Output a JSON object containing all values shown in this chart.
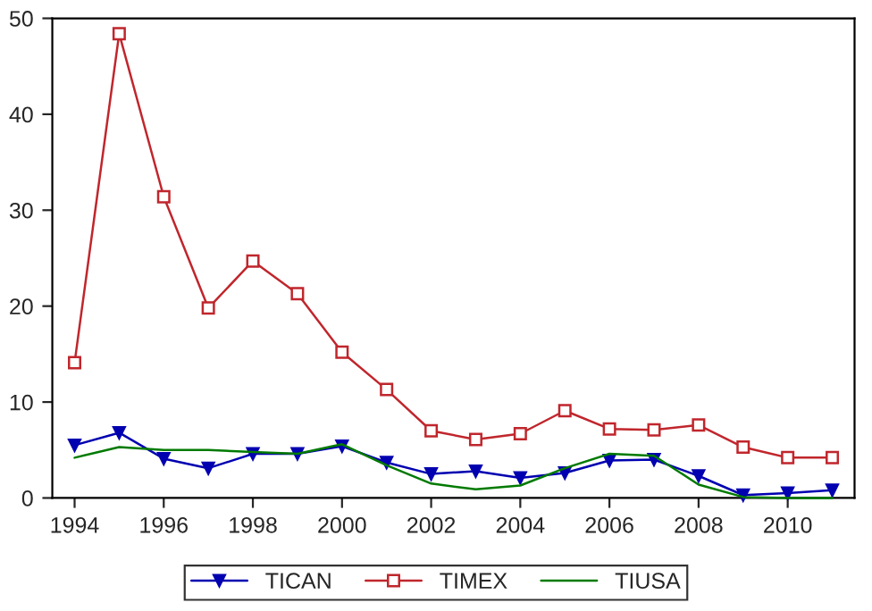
{
  "chart_data": {
    "type": "line",
    "x": [
      1994,
      1995,
      1996,
      1997,
      1998,
      1999,
      2000,
      2001,
      2002,
      2003,
      2004,
      2005,
      2006,
      2007,
      2008,
      2009,
      2010,
      2011
    ],
    "series": [
      {
        "name": "TICAN",
        "color": "#0000b0",
        "marker": "triangle",
        "values": [
          5.5,
          6.8,
          4.1,
          3.1,
          4.6,
          4.6,
          5.4,
          3.7,
          2.5,
          2.8,
          2.1,
          2.6,
          3.9,
          4.0,
          2.3,
          0.3,
          0.5,
          0.8
        ]
      },
      {
        "name": "TIMEX",
        "color": "#c0262c",
        "marker": "square",
        "values": [
          14.1,
          48.4,
          31.4,
          19.8,
          24.7,
          21.3,
          15.2,
          11.3,
          7.0,
          6.1,
          6.7,
          9.1,
          7.2,
          7.1,
          7.6,
          5.3,
          4.2,
          4.2
        ]
      },
      {
        "name": "TIUSA",
        "color": "#007a00",
        "marker": "none",
        "values": [
          4.2,
          5.3,
          5.0,
          5.0,
          4.8,
          4.6,
          5.6,
          3.4,
          1.5,
          0.9,
          1.3,
          3.1,
          4.6,
          4.4,
          1.4,
          0.1,
          0.0,
          0.0
        ]
      }
    ],
    "xlim": [
      1993.5,
      2011.5
    ],
    "xticks": [
      1994,
      1996,
      1998,
      2000,
      2002,
      2004,
      2006,
      2008,
      2010
    ],
    "ylim": [
      0,
      50
    ],
    "yticks": [
      0,
      10,
      20,
      30,
      40,
      50
    ],
    "grid": false,
    "legend": "bottom",
    "line_style": "solid"
  }
}
